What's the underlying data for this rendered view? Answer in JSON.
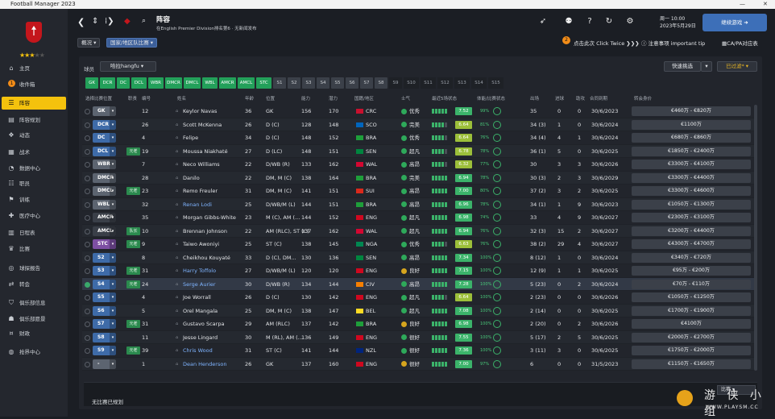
{
  "window": {
    "title": "Football Manager 2023"
  },
  "sidebar": {
    "rating_stars": 3,
    "items": [
      {
        "label": "主页",
        "icon": "home-icon"
      },
      {
        "label": "收件箱",
        "icon": "inbox-icon",
        "badge": "1"
      },
      {
        "label": "阵容",
        "icon": "squad-icon",
        "active": true
      },
      {
        "label": "阵容规划",
        "icon": "squad-planner-icon"
      },
      {
        "label": "动态",
        "icon": "dynamics-icon"
      },
      {
        "label": "战术",
        "icon": "tactics-icon"
      },
      {
        "label": "数据中心",
        "icon": "data-hub-icon"
      },
      {
        "label": "职员",
        "icon": "staff-icon"
      },
      {
        "label": "训练",
        "icon": "training-icon"
      },
      {
        "label": "医疗中心",
        "icon": "medical-icon"
      },
      {
        "label": "日程表",
        "icon": "schedule-icon"
      },
      {
        "label": "比赛",
        "icon": "trophy-icon"
      },
      {
        "label": "球探报告",
        "icon": "scouting-icon"
      },
      {
        "label": "转会",
        "icon": "transfers-icon"
      },
      {
        "label": "俱乐部信息",
        "icon": "club-info-icon"
      },
      {
        "label": "俱乐部愿景",
        "icon": "club-vision-icon"
      },
      {
        "label": "财政",
        "icon": "finances-icon"
      },
      {
        "label": "抢界中心",
        "icon": "world-icon"
      }
    ]
  },
  "topbar": {
    "title": "阵容",
    "subtitle": "在English Premier Division排名第6 · 无新闻发布",
    "date_day": "周一 10:00",
    "date_full": "2023年5月29日",
    "continue_label": "继续游戏"
  },
  "subbar": {
    "tab_overview": "概况",
    "tab_national": "国家/地区队比赛",
    "tip_count": "2",
    "tip_text": "点击此次 Click Twice",
    "important": "注意事项 important tip",
    "ca_pa": "CA/PA对应表"
  },
  "panel": {
    "filter_label": "球员",
    "filter_value": "哈拉hangfu",
    "quick_select": "快速挑选",
    "filtered": "已过滤*"
  },
  "position_chips": [
    "GK",
    "DCR",
    "DC",
    "DCL",
    "WBR",
    "DMCR",
    "DMCL",
    "WBL",
    "AMCR",
    "AMCL",
    "STC",
    "S1",
    "S2",
    "S3",
    "S4",
    "S5",
    "S6",
    "S7",
    "S8",
    "S9",
    "S10",
    "S11",
    "S12",
    "S13",
    "S14",
    "S15"
  ],
  "columns": {
    "select": "选择比赛位置",
    "role": "职责",
    "number": "编号",
    "name": "姓名",
    "age": "年龄",
    "position": "位置",
    "ca": "能力",
    "pa": "潜力",
    "nationality": "国籍/地区",
    "morale": "士气",
    "rating": "最近5场状态",
    "condition": "体能/比赛状态",
    "apps": "出场",
    "goals": "进球",
    "assists": "助攻",
    "contract": "合同到期",
    "wage": "转会身价"
  },
  "players": [
    {
      "slot": "GK",
      "slot_color": "grey",
      "tag": "",
      "num": "12",
      "name": "Keylor Navas",
      "age": "36",
      "pos": "GK",
      "ca": "156",
      "pa": "170",
      "nat": "CRC",
      "flag": "#c8102e",
      "morale": "优秀",
      "morale_color": "#2ea95a",
      "rating": "7.52",
      "cond": "99%",
      "apps": "35",
      "goals": "0",
      "assists": "0",
      "contract": "30/6/2023",
      "wage": "€460万 - €820万"
    },
    {
      "slot": "DCR",
      "slot_color": "blue",
      "tag": "",
      "num": "26",
      "name": "Scott McKenna",
      "age": "26",
      "pos": "D (C)",
      "ca": "128",
      "pa": "148",
      "nat": "SCO",
      "flag": "#0065bd",
      "morale": "完美",
      "morale_color": "#2ea95a",
      "rating": "6.64",
      "cond": "81%",
      "apps": "34 (3)",
      "goals": "1",
      "assists": "0",
      "contract": "30/6/2024",
      "wage": "€1100万"
    },
    {
      "slot": "DC",
      "slot_color": "blue",
      "tag": "",
      "num": "4",
      "name": "Felipe",
      "age": "34",
      "pos": "D (C)",
      "ca": "148",
      "pa": "152",
      "nat": "BRA",
      "flag": "#1e9e3a",
      "morale": "优秀",
      "morale_color": "#2ea95a",
      "rating": "6.64",
      "cond": "76%",
      "apps": "34 (4)",
      "goals": "4",
      "assists": "1",
      "contract": "30/6/2024",
      "wage": "€680万 - €860万"
    },
    {
      "slot": "DCL",
      "slot_color": "blue",
      "tag": "元老",
      "num": "19",
      "name": "Moussa Niakhaté",
      "age": "27",
      "pos": "D (LC)",
      "ca": "148",
      "pa": "151",
      "nat": "SEN",
      "flag": "#00853f",
      "morale": "超凡",
      "morale_color": "#2ea95a",
      "rating": "6.78",
      "cond": "78%",
      "apps": "36 (1)",
      "goals": "5",
      "assists": "0",
      "contract": "30/6/2025",
      "wage": "€1850万 - €2400万"
    },
    {
      "slot": "WBR",
      "slot_color": "grey",
      "tag": "",
      "num": "7",
      "name": "Neco Williams",
      "age": "22",
      "pos": "D/WB (R)",
      "ca": "133",
      "pa": "162",
      "nat": "WAL",
      "flag": "#d30731",
      "morale": "高昂",
      "morale_color": "#2ea95a",
      "rating": "6.32",
      "cond": "77%",
      "apps": "30",
      "goals": "3",
      "assists": "3",
      "contract": "30/6/2026",
      "wage": "€3300万 - €4100万"
    },
    {
      "slot": "DMCR",
      "slot_color": "grey",
      "tag": "",
      "num": "28",
      "name": "Danilo",
      "age": "22",
      "pos": "DM, M (C)",
      "ca": "138",
      "pa": "164",
      "nat": "BRA",
      "flag": "#1e9e3a",
      "morale": "完美",
      "morale_color": "#2ea95a",
      "rating": "6.94",
      "cond": "78%",
      "apps": "30 (3)",
      "goals": "2",
      "assists": "3",
      "contract": "30/6/2029",
      "wage": "€3300万 - €4400万"
    },
    {
      "slot": "DMCL",
      "slot_color": "grey",
      "tag": "元老",
      "num": "23",
      "name": "Remo Freuler",
      "age": "31",
      "pos": "DM, M (C)",
      "ca": "141",
      "pa": "151",
      "nat": "SUI",
      "flag": "#da291c",
      "morale": "高昂",
      "morale_color": "#2ea95a",
      "rating": "7.00",
      "cond": "80%",
      "apps": "37 (2)",
      "goals": "3",
      "assists": "2",
      "contract": "30/6/2025",
      "wage": "€3300万 - €4600万"
    },
    {
      "slot": "WBL",
      "slot_color": "grey",
      "tag": "",
      "num": "32",
      "name": "Renan Lodi",
      "age": "25",
      "pos": "D/WB/M (L)",
      "ca": "144",
      "pa": "151",
      "nat": "BRA",
      "flag": "#1e9e3a",
      "morale": "高昂",
      "morale_color": "#2ea95a",
      "rating": "6.96",
      "cond": "78%",
      "apps": "34 (1)",
      "goals": "1",
      "assists": "9",
      "contract": "30/6/2023",
      "wage": "€1050万 - €1300万"
    },
    {
      "slot": "AMCR",
      "slot_color": "dark",
      "tag": "",
      "num": "35",
      "name": "Morgan Gibbs-White",
      "age": "23",
      "pos": "M (C), AM (...",
      "ca": "144",
      "pa": "152",
      "nat": "ENG",
      "flag": "#cf081f",
      "morale": "超凡",
      "morale_color": "#2ea95a",
      "rating": "6.98",
      "cond": "74%",
      "apps": "33",
      "goals": "4",
      "assists": "9",
      "contract": "30/6/2027",
      "wage": "€2300万 - €3100万"
    },
    {
      "slot": "AMCL",
      "slot_color": "dark",
      "tag": "队长",
      "num": "10",
      "name": "Brennan Johnson",
      "age": "22",
      "pos": "AM (RLC), ST (C)",
      "ca": "137",
      "pa": "162",
      "nat": "WAL",
      "flag": "#d30731",
      "morale": "超凡",
      "morale_color": "#2ea95a",
      "rating": "6.94",
      "cond": "76%",
      "apps": "32 (3)",
      "goals": "15",
      "assists": "2",
      "contract": "30/6/2027",
      "wage": "€3200万 - €4400万"
    },
    {
      "slot": "STC",
      "slot_color": "purple",
      "tag": "元老",
      "num": "9",
      "name": "Taiwo Awoniyi",
      "age": "25",
      "pos": "ST (C)",
      "ca": "138",
      "pa": "145",
      "nat": "NGA",
      "flag": "#008751",
      "morale": "优秀",
      "morale_color": "#2ea95a",
      "rating": "6.63",
      "cond": "76%",
      "apps": "38 (2)",
      "goals": "29",
      "assists": "4",
      "contract": "30/6/2027",
      "wage": "€4300万 - €4700万"
    },
    {
      "slot": "S2",
      "slot_color": "blue",
      "tag": "",
      "num": "8",
      "name": "Cheikhou Kouyaté",
      "age": "33",
      "pos": "D (C), DM...",
      "ca": "130",
      "pa": "136",
      "nat": "SEN",
      "flag": "#00853f",
      "morale": "高昂",
      "morale_color": "#2ea95a",
      "rating": "7.34",
      "cond": "100%",
      "apps": "8 (12)",
      "goals": "1",
      "assists": "0",
      "contract": "30/6/2024",
      "wage": "€340万 - €720万"
    },
    {
      "slot": "S3",
      "slot_color": "blue",
      "tag": "元老",
      "num": "31",
      "name": "Harry Toffolo",
      "age": "27",
      "pos": "D/WB/M (L)",
      "ca": "120",
      "pa": "120",
      "nat": "ENG",
      "flag": "#cf081f",
      "morale": "良好",
      "morale_color": "#d6a51e",
      "rating": "7.15",
      "cond": "100%",
      "apps": "12 (9)",
      "goals": "1",
      "assists": "1",
      "contract": "30/6/2025",
      "wage": "€95万 - €200万"
    },
    {
      "slot": "S4",
      "slot_color": "blue",
      "tag": "元老",
      "num": "24",
      "name": "Serge Aurier",
      "age": "30",
      "pos": "D/WB (R)",
      "ca": "134",
      "pa": "144",
      "nat": "CIV",
      "flag": "#f77f00",
      "morale": "高昂",
      "morale_color": "#2ea95a",
      "rating": "7.28",
      "cond": "100%",
      "apps": "5 (23)",
      "goals": "0",
      "assists": "2",
      "contract": "30/6/2024",
      "wage": "€70万 - €110万",
      "selected": true
    },
    {
      "slot": "S5",
      "slot_color": "blue",
      "tag": "",
      "num": "4",
      "name": "Joe Worrall",
      "age": "26",
      "pos": "D (C)",
      "ca": "130",
      "pa": "142",
      "nat": "ENG",
      "flag": "#cf081f",
      "morale": "超凡",
      "morale_color": "#2ea95a",
      "rating": "6.64",
      "cond": "100%",
      "apps": "2 (23)",
      "goals": "0",
      "assists": "0",
      "contract": "30/6/2026",
      "wage": "€1050万 - €1250万"
    },
    {
      "slot": "S6",
      "slot_color": "blue",
      "tag": "",
      "num": "5",
      "name": "Orel Mangala",
      "age": "25",
      "pos": "DM, M (C)",
      "ca": "138",
      "pa": "147",
      "nat": "BEL",
      "flag": "#fdda24",
      "morale": "超凡",
      "morale_color": "#2ea95a",
      "rating": "7.08",
      "cond": "100%",
      "apps": "2 (14)",
      "goals": "0",
      "assists": "0",
      "contract": "30/6/2025",
      "wage": "€1700万 - €1900万"
    },
    {
      "slot": "S7",
      "slot_color": "blue",
      "tag": "元老",
      "num": "31",
      "name": "Gustavo Scarpa",
      "age": "29",
      "pos": "AM (RLC)",
      "ca": "137",
      "pa": "142",
      "nat": "BRA",
      "flag": "#1e9e3a",
      "morale": "良好",
      "morale_color": "#d6a51e",
      "rating": "6.98",
      "cond": "100%",
      "apps": "2 (20)",
      "goals": "0",
      "assists": "2",
      "contract": "30/6/2026",
      "wage": "€4100万"
    },
    {
      "slot": "S8",
      "slot_color": "blue",
      "tag": "",
      "num": "11",
      "name": "Jesse Lingard",
      "age": "30",
      "pos": "M (RL), AM (...",
      "ca": "136",
      "pa": "149",
      "nat": "ENG",
      "flag": "#cf081f",
      "morale": "很好",
      "morale_color": "#2ea95a",
      "rating": "7.55",
      "cond": "100%",
      "apps": "5 (17)",
      "goals": "2",
      "assists": "5",
      "contract": "30/6/2025",
      "wage": "€2000万 - €2700万"
    },
    {
      "slot": "S9",
      "slot_color": "blue",
      "tag": "元老",
      "num": "39",
      "name": "Chris Wood",
      "age": "31",
      "pos": "ST (C)",
      "ca": "141",
      "pa": "144",
      "nat": "NZL",
      "flag": "#00247d",
      "morale": "很好",
      "morale_color": "#2ea95a",
      "rating": "7.36",
      "cond": "100%",
      "apps": "3 (11)",
      "goals": "3",
      "assists": "0",
      "contract": "30/6/2025",
      "wage": "€1750万 - €2000万"
    },
    {
      "slot": "-",
      "slot_color": "grey",
      "tag": "",
      "num": "1",
      "name": "Dean Henderson",
      "age": "26",
      "pos": "GK",
      "ca": "137",
      "pa": "160",
      "nat": "ENG",
      "flag": "#cf081f",
      "morale": "很好",
      "morale_color": "#d6a51e",
      "rating": "7.00",
      "cond": "97%",
      "apps": "6",
      "goals": "0",
      "assists": "0",
      "contract": "31/5/2023",
      "wage": "€1150万 - €1650万"
    }
  ],
  "footer": {
    "status": "无比赛已规划",
    "compare_label": "比赛"
  },
  "watermark": {
    "title": "游 侠 小 组",
    "url": "WWW.PLAYSM.CC"
  }
}
